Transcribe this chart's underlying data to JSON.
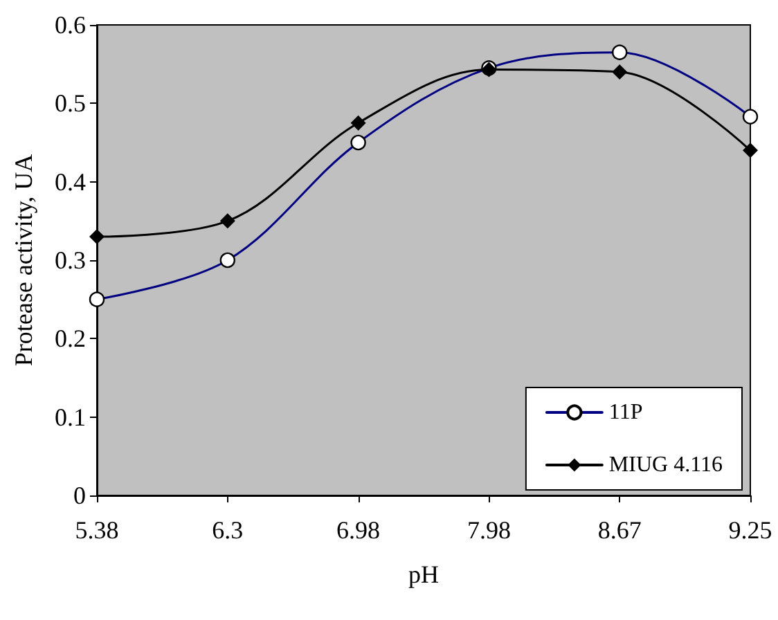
{
  "chart_data": {
    "type": "line",
    "xlabel": "pH",
    "ylabel": "Protease activity, UA",
    "categories": [
      "5.38",
      "6.3",
      "6.98",
      "7.98",
      "8.67",
      "9.25"
    ],
    "series": [
      {
        "name": "11P",
        "color": "#000080",
        "marker": "circle",
        "values": [
          0.25,
          0.3,
          0.45,
          0.545,
          0.565,
          0.483
        ]
      },
      {
        "name": "MIUG 4.116",
        "color": "#000000",
        "marker": "diamond",
        "values": [
          0.33,
          0.35,
          0.475,
          0.543,
          0.54,
          0.44
        ]
      }
    ],
    "ylim": [
      0,
      0.6
    ],
    "yticks": [
      0,
      0.1,
      0.2,
      0.3,
      0.4,
      0.5,
      0.6
    ],
    "grid": false,
    "legend": "bottom right",
    "line_style": "solid"
  }
}
